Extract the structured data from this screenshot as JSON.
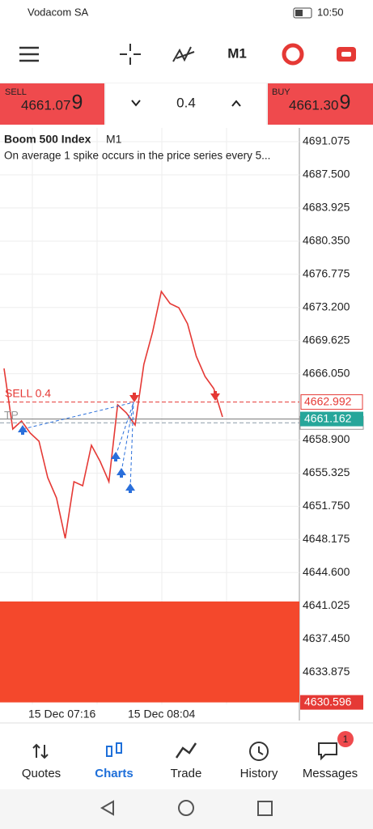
{
  "status_bar": {
    "carrier": "Vodacom SA",
    "time": "10:50"
  },
  "toolbar": {
    "timeframe": "M1"
  },
  "trade_panel": {
    "sell": {
      "label": "SELL",
      "price": "4661.07",
      "last_digit": "9"
    },
    "volume": "0.4",
    "buy": {
      "label": "BUY",
      "price": "4661.30",
      "last_digit": "9"
    }
  },
  "chart_data": {
    "type": "line",
    "title": "Boom 500 Index",
    "timeframe": "M1",
    "subtitle": "On average 1 spike occurs in the price series every 5...",
    "color": "#e53935",
    "values": [
      4666.62,
      4660.08,
      4660.95,
      4659.64,
      4658.77,
      4654.84,
      4652.65,
      4648.29,
      4654.4,
      4653.96,
      4658.33,
      4656.58,
      4654.4,
      4662.7,
      4661.82,
      4660.51,
      4667.06,
      4670.55,
      4674.92,
      4673.61,
      4673.17,
      4671.43,
      4667.93,
      4665.75,
      4664.44,
      4661.39
    ],
    "ylim": [
      4628.64,
      4692.56
    ],
    "yticks": [
      4691.075,
      {
        "value": 4687.5,
        "label": "4687.500"
      },
      4683.925,
      {
        "value": 4680.35,
        "label": "4680.350"
      },
      4676.775,
      {
        "value": 4673.2,
        "label": "4673.200"
      },
      4669.625,
      {
        "value": 4666.05,
        "label": "4666.050"
      },
      {
        "value": 4658.9,
        "label": "4658.900"
      },
      4655.325,
      {
        "value": 4651.75,
        "label": "4651.750"
      },
      4648.175,
      {
        "value": 4644.6,
        "label": "4644.600"
      },
      4641.025,
      {
        "value": 4637.45,
        "label": "4637.450"
      },
      4633.875
    ],
    "grid": true,
    "xlabels": [
      "15 Dec 07:16",
      "15 Dec 08:04"
    ],
    "order_label": "SELL 0.4",
    "tp_label": "TP",
    "sell_level": 4662.992,
    "bid_level": 4661.162,
    "tp_level": 4660.75,
    "zone": {
      "from": 4630.596,
      "to": 4641.48
    }
  },
  "nav": [
    "Quotes",
    "Charts",
    "Trade",
    "History",
    "Messages"
  ],
  "badge": "1"
}
